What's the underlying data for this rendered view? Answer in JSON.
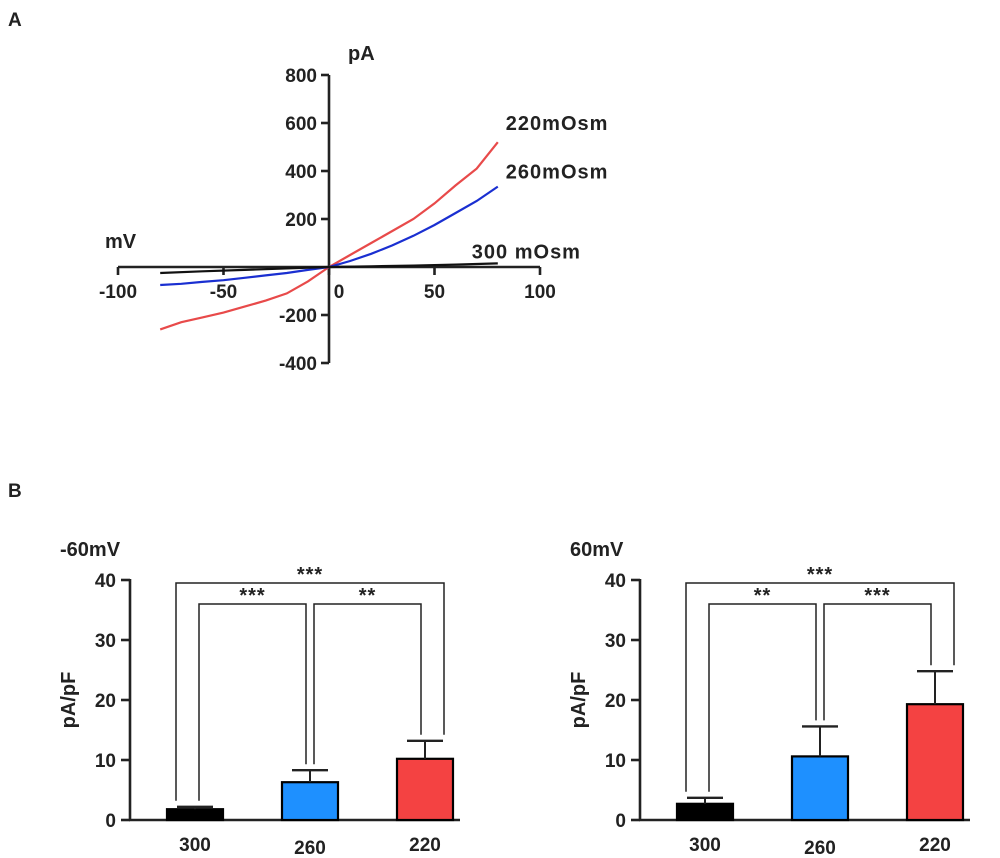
{
  "panels": {
    "a_label": "A",
    "b_label": "B"
  },
  "chart_data": [
    {
      "type": "line",
      "panel": "A",
      "xlabel": "mV",
      "ylabel": "pA",
      "xlim": [
        -100,
        100
      ],
      "ylim": [
        -400,
        800
      ],
      "x_ticks": [
        -100,
        -50,
        0,
        50,
        100
      ],
      "y_ticks": [
        -400,
        -200,
        200,
        400,
        600,
        800
      ],
      "x_tick_labels": [
        "-100",
        "-50",
        "0",
        "50",
        "100"
      ],
      "y_tick_labels": [
        "-400",
        "-200",
        "200",
        "400",
        "600",
        "800"
      ],
      "x_range": [
        -80,
        80
      ],
      "series": [
        {
          "name": "220mOsm",
          "color": "#e84a4a",
          "x": [
            -80,
            -70,
            -60,
            -50,
            -40,
            -30,
            -20,
            -10,
            0,
            10,
            20,
            30,
            40,
            50,
            60,
            70,
            80
          ],
          "y": [
            -260,
            -230,
            -210,
            -190,
            -165,
            -140,
            -110,
            -60,
            0,
            50,
            100,
            150,
            200,
            265,
            340,
            410,
            520
          ]
        },
        {
          "name": "260mOsm",
          "color": "#1a2fd1",
          "x": [
            -80,
            -70,
            -60,
            -50,
            -40,
            -30,
            -20,
            -10,
            0,
            10,
            20,
            30,
            40,
            50,
            60,
            70,
            80
          ],
          "y": [
            -75,
            -70,
            -62,
            -55,
            -45,
            -35,
            -25,
            -12,
            0,
            25,
            55,
            90,
            130,
            175,
            225,
            275,
            335
          ]
        },
        {
          "name": "300 mOsm",
          "color": "#111111",
          "x": [
            -80,
            -60,
            -40,
            -20,
            0,
            20,
            40,
            60,
            80
          ],
          "y": [
            -25,
            -18,
            -12,
            -6,
            0,
            3,
            6,
            10,
            15
          ]
        }
      ]
    },
    {
      "type": "bar",
      "panel": "B-left",
      "title": "-60mV",
      "ylabel": "pA/pF",
      "ylim": [
        0,
        40
      ],
      "y_ticks": [
        0,
        10,
        20,
        30,
        40
      ],
      "y_tick_labels": [
        "0",
        "10",
        "20",
        "30",
        "40"
      ],
      "categories": [
        "300",
        "260",
        "220"
      ],
      "values": [
        1.8,
        6.3,
        10.2
      ],
      "errors": [
        0.4,
        2.0,
        3.0
      ],
      "colors": [
        "#000000",
        "#1e90ff",
        "#f44242"
      ],
      "significance": [
        {
          "from": 0,
          "to": 1,
          "label": "***",
          "level": 36
        },
        {
          "from": 1,
          "to": 2,
          "label": "**",
          "level": 36
        },
        {
          "from": 0,
          "to": 2,
          "label": "***",
          "level": 39.5
        }
      ]
    },
    {
      "type": "bar",
      "panel": "B-right",
      "title": "60mV",
      "ylabel": "pA/pF",
      "ylim": [
        0,
        40
      ],
      "y_ticks": [
        0,
        10,
        20,
        30,
        40
      ],
      "y_tick_labels": [
        "0",
        "10",
        "20",
        "30",
        "40"
      ],
      "categories": [
        "300",
        "260",
        "220"
      ],
      "values": [
        2.7,
        10.6,
        19.3
      ],
      "errors": [
        1.0,
        5.0,
        5.5
      ],
      "colors": [
        "#000000",
        "#1e90ff",
        "#f44242"
      ],
      "significance": [
        {
          "from": 0,
          "to": 1,
          "label": "**",
          "level": 36
        },
        {
          "from": 1,
          "to": 2,
          "label": "***",
          "level": 36
        },
        {
          "from": 0,
          "to": 2,
          "label": "***",
          "level": 39.5
        }
      ]
    }
  ]
}
